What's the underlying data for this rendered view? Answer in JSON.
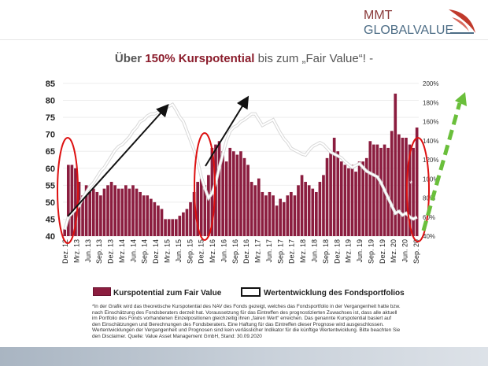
{
  "logo": {
    "line1": "MMT",
    "line2": "GLOBALVALUE",
    "mark_color": "#c0392b"
  },
  "headline": {
    "part1": "Über ",
    "highlight": "150% Kurspotential",
    "part2": " bis zum „Fair Value“! -"
  },
  "legend": {
    "bars": "Kurspotential zum Fair Value",
    "line": "Wertentwicklung des Fondsportfolios"
  },
  "footnote": "*In der Grafik wird das theoretische Kurspotential des NAV des Fonds gezeigt, welches das Fondsportfolio in der Vergangenheit hatte bzw. nach Einschätzung des Fondsberaters derzeit hat. Voraussetzung für das Eintreffen des prognostizierten Zuwachses ist, dass alle aktuell im Portfolio des Fonds vorhandenen Einzelpositionen gleichzeitig ihren „fairen Wert“ erreichen. Das genannte Kurspotential basiert auf den Einschätzungen und Berechnungen des Fondsberaters. Eine Haftung für das Eintreffen dieser Prognose wird ausgeschlossen. Wertentwicklungen der Vergangenheit und Prognosen sind kein verlässlicher Indikator für die künftige Wertentwicklung. Bitte beachten Sie den Disclaimer. Quelle: Value Asset Management GmbH, Stand: 30.09.2020",
  "chart_data": {
    "type": "bar",
    "left_axis": {
      "ticks": [
        "40",
        "45",
        "50",
        "55",
        "60",
        "65",
        "70",
        "75",
        "80",
        "85"
      ],
      "ylim": [
        40,
        85
      ]
    },
    "right_axis": {
      "ticks": [
        "40%",
        "60%",
        "80%",
        "100%",
        "120%",
        "140%",
        "160%",
        "180%",
        "200%"
      ],
      "ylim": [
        40,
        200
      ]
    },
    "x_tick_labels": [
      "Dez. 12",
      "Mrz. 13",
      "Jun. 13",
      "Sep. 13",
      "Dez. 13",
      "Mrz. 14",
      "Jun. 14",
      "Sep. 14",
      "Dez. 14",
      "Mrz. 15",
      "Jun. 15",
      "Sep. 15",
      "Dez. 15",
      "Mrz. 16",
      "Jun. 16",
      "Sep. 16",
      "Dez. 16",
      "Mrz. 17",
      "Jun. 17",
      "Sep. 17",
      "Dez. 17",
      "Mrz. 18",
      "Jun. 18",
      "Sep. 18",
      "Dez. 18",
      "Mrz. 19",
      "Jun. 19",
      "Sep. 19",
      "Dez. 19",
      "Mrz. 20",
      "Jun. 20",
      "Sep. 20"
    ],
    "series": [
      {
        "name": "Kurspotential zum Fair Value",
        "type": "bar",
        "axis": "left",
        "color": "#8b1d3f",
        "values": [
          42,
          61,
          61,
          60,
          56,
          52,
          55,
          53,
          54,
          53,
          52,
          54,
          55,
          56,
          55,
          54,
          54,
          55,
          54,
          55,
          54,
          53,
          52,
          52,
          51,
          50,
          49,
          48,
          45,
          45,
          45,
          45,
          46,
          47,
          48,
          50,
          53,
          56,
          57,
          55,
          58,
          66,
          67,
          68,
          65,
          62,
          66,
          65,
          64,
          65,
          63,
          61,
          56,
          55,
          57,
          53,
          52,
          53,
          52,
          49,
          51,
          50,
          52,
          53,
          52,
          55,
          58,
          56,
          55,
          54,
          53,
          56,
          58,
          63,
          65,
          69,
          65,
          62,
          61,
          60,
          61,
          59,
          62,
          62,
          63,
          68,
          67,
          67,
          66,
          67,
          66,
          71,
          82,
          70,
          69,
          69,
          67,
          66,
          72
        ]
      },
      {
        "name": "Wertentwicklung des Fondsportfolios",
        "type": "line",
        "axis": "right",
        "color": "#ffffff",
        "values": [
          47,
          60,
          64,
          68,
          72,
          80,
          86,
          92,
          96,
          102,
          108,
          112,
          118,
          124,
          130,
          134,
          136,
          140,
          144,
          150,
          154,
          160,
          162,
          166,
          168,
          168,
          170,
          172,
          174,
          176,
          178,
          172,
          165,
          160,
          150,
          140,
          130,
          118,
          102,
          90,
          80,
          85,
          96,
          112,
          126,
          140,
          150,
          154,
          156,
          160,
          162,
          165,
          168,
          168,
          162,
          156,
          158,
          160,
          162,
          155,
          148,
          142,
          138,
          132,
          130,
          128,
          126,
          125,
          130,
          134,
          136,
          138,
          136,
          132,
          128,
          126,
          124,
          122,
          118,
          115,
          112,
          114,
          116,
          112,
          108,
          106,
          104,
          102,
          96,
          88,
          80,
          72,
          64,
          66,
          62,
          64,
          60,
          58,
          60
        ]
      }
    ],
    "annotations": {
      "circles": 3,
      "black_arrows": 2,
      "green_dashed_arrow": {
        "color": "#6abf3b"
      },
      "footnote_marker": "*"
    }
  }
}
